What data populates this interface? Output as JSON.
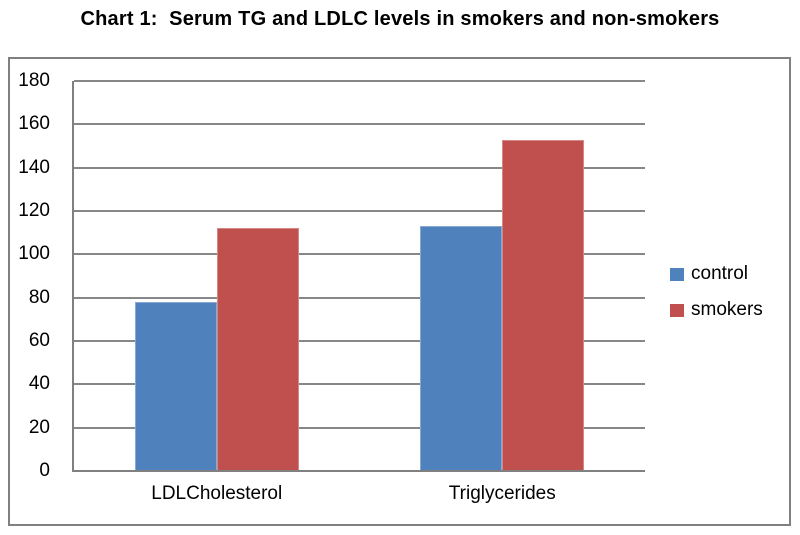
{
  "title": "Chart 1:  Serum TG and LDLC levels in smokers and non-smokers",
  "chart_data": {
    "type": "bar",
    "categories": [
      "LDLCholesterol",
      "Triglycerides"
    ],
    "series": [
      {
        "name": "control",
        "color": "#4F81BD",
        "values": [
          78,
          113
        ]
      },
      {
        "name": "smokers",
        "color": "#C0504D",
        "values": [
          112,
          153
        ]
      }
    ],
    "title": "Chart 1:  Serum TG and LDLC levels in smokers and non-smokers",
    "xlabel": "",
    "ylabel": "",
    "ylim": [
      0,
      180
    ],
    "ytick_step": 20,
    "grid": "horizontal",
    "legend_position": "right"
  },
  "colors": {
    "gridline": "#878787",
    "axis": "#808080",
    "frame_border": "#808080",
    "text": "#000000"
  }
}
